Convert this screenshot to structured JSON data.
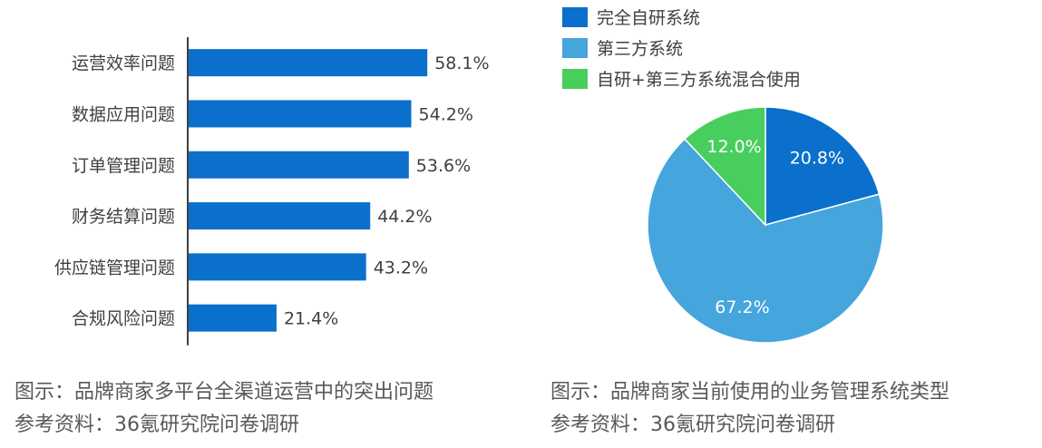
{
  "chart_data": [
    {
      "type": "bar",
      "orientation": "horizontal",
      "categories": [
        "运营效率问题",
        "数据应用问题",
        "订单管理问题",
        "财务结算问题",
        "供应链管理问题",
        "合规风险问题"
      ],
      "values": [
        58.1,
        54.2,
        53.6,
        44.2,
        43.2,
        21.4
      ],
      "value_labels": [
        "58.1%",
        "54.2%",
        "53.6%",
        "44.2%",
        "43.2%",
        "21.4%"
      ],
      "color": "#0A70CC",
      "caption": "图示：品牌商家多平台全渠道运营中的突出问题",
      "source": "参考资料：36氪研究院问卷调研"
    },
    {
      "type": "pie",
      "labels": [
        "完全自研系统",
        "第三方系统",
        "自研+第三方系统混合使用"
      ],
      "values": [
        20.8,
        67.2,
        12.0
      ],
      "value_labels": [
        "20.8%",
        "67.2%",
        "12.0%"
      ],
      "colors": [
        "#0A70CC",
        "#45A5DD",
        "#47CE5D"
      ],
      "legend_position": "top",
      "caption": "图示：品牌商家当前使用的业务管理系统类型",
      "source": "参考资料：36氪研究院问卷调研"
    }
  ]
}
